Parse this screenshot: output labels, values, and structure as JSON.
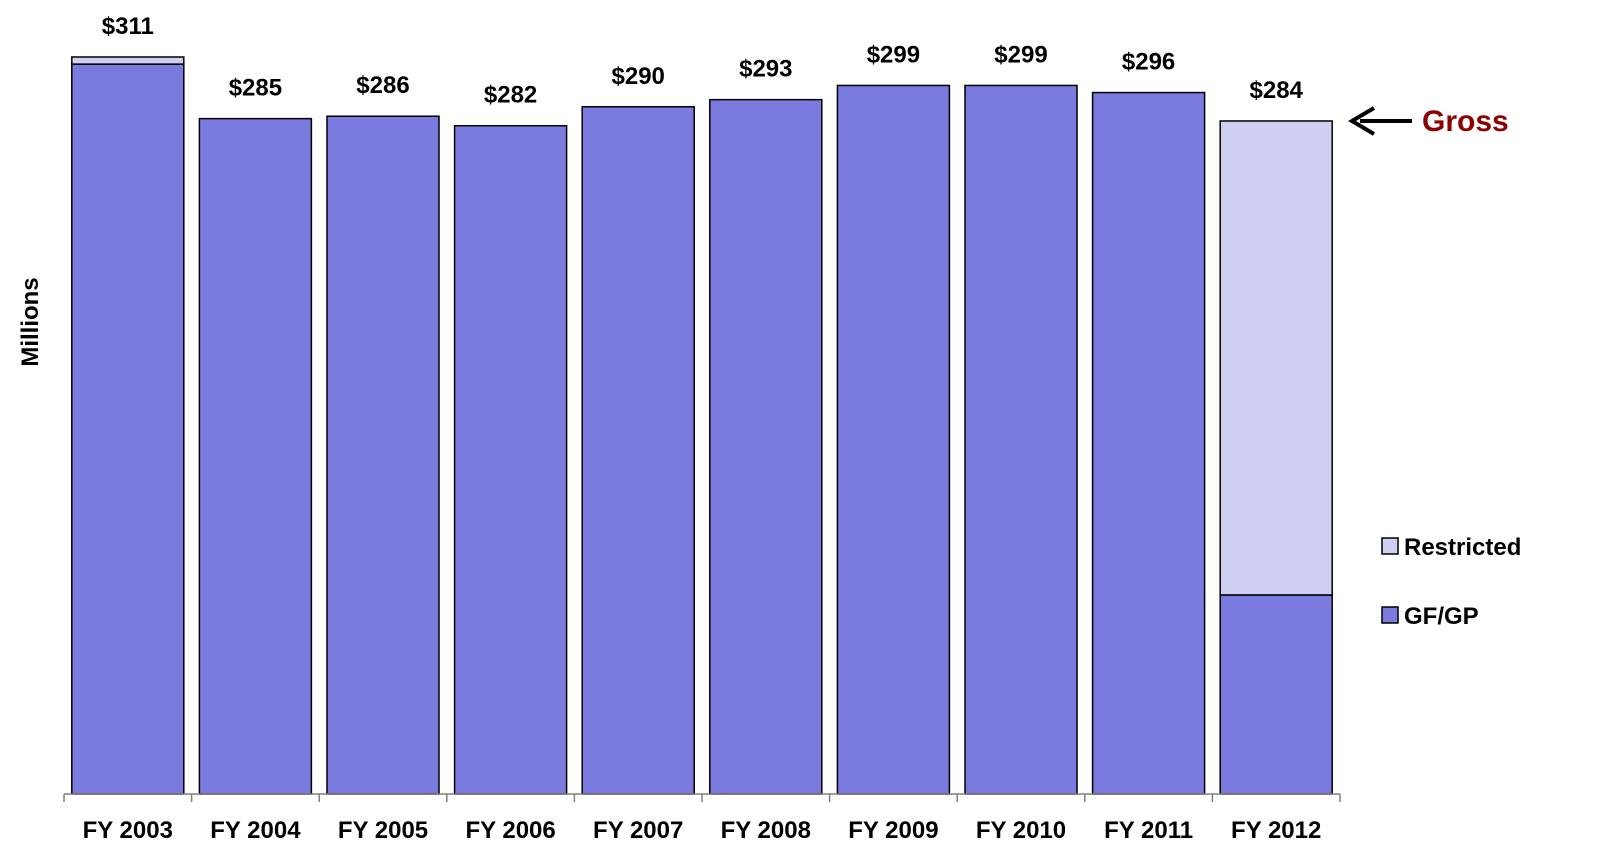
{
  "chart_data": {
    "type": "bar",
    "stacked": true,
    "title": "",
    "xlabel": "",
    "ylabel": "Millions",
    "ylim": [
      0,
      311
    ],
    "grid": false,
    "legend_position": "right",
    "categories": [
      "FY 2003",
      "FY 2004",
      "FY 2005",
      "FY 2006",
      "FY 2007",
      "FY 2008",
      "FY 2009",
      "FY 2010",
      "FY 2011",
      "FY 2012"
    ],
    "series": [
      {
        "name": "GF/GP",
        "values": [
          308,
          285,
          286,
          282,
          290,
          293,
          299,
          299,
          296,
          84
        ],
        "color": "#7b7bdf"
      },
      {
        "name": "Restricted",
        "values": [
          3,
          0,
          0,
          0,
          0,
          0,
          0,
          0,
          0,
          200
        ],
        "color": "#cfcff2"
      }
    ],
    "data_labels": [
      "$311",
      "$285",
      "$286",
      "$282",
      "$290",
      "$293",
      "$299",
      "$299",
      "$296",
      "$284"
    ],
    "annotation": {
      "text": "Gross",
      "color": "#8b0000",
      "arrow_target": "FY 2012"
    }
  }
}
